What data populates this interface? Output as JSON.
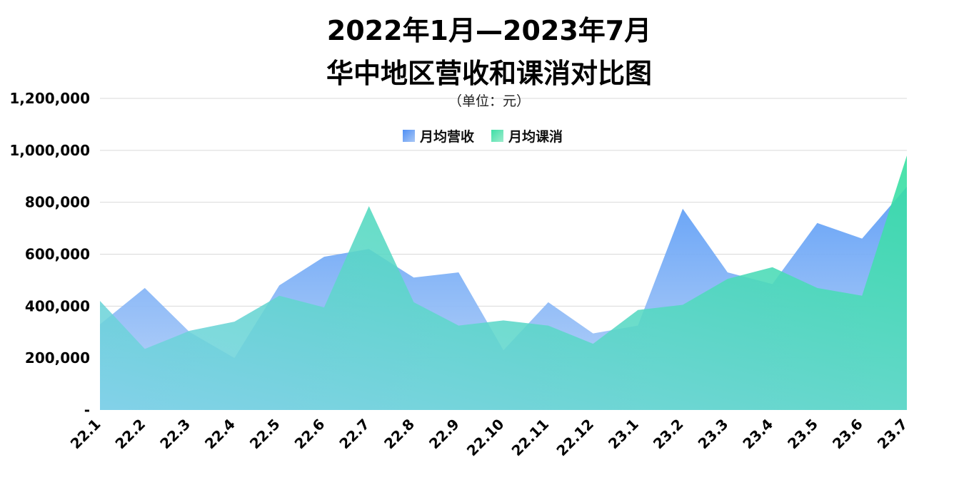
{
  "chart_data": {
    "type": "area",
    "title_line1": "2022年1月—2023年7月",
    "title_line2": "华中地区营收和课消对比图",
    "subtitle": "（单位：元）",
    "categories": [
      "22.1",
      "22.2",
      "22.3",
      "22.4",
      "22.5",
      "22.6",
      "22.7",
      "22.8",
      "22.9",
      "22.10",
      "22.11",
      "22.12",
      "23.1",
      "23.2",
      "23.3",
      "23.4",
      "23.5",
      "23.6",
      "23.7"
    ],
    "series": [
      {
        "name": "月均营收",
        "values": [
          330000,
          470000,
          300000,
          200000,
          480000,
          590000,
          620000,
          510000,
          530000,
          230000,
          415000,
          295000,
          325000,
          775000,
          530000,
          485000,
          720000,
          660000,
          860000
        ],
        "color_top": "#5b9cf6",
        "color_bottom": "#a9c8f5"
      },
      {
        "name": "月均课消",
        "values": [
          420000,
          235000,
          305000,
          340000,
          440000,
          395000,
          785000,
          415000,
          325000,
          345000,
          325000,
          255000,
          385000,
          405000,
          505000,
          550000,
          470000,
          440000,
          980000
        ]
      }
    ],
    "ylim": [
      0,
      1200000
    ],
    "yticks": [
      0,
      200000,
      400000,
      600000,
      800000,
      1000000,
      1200000
    ],
    "ytick_labels": [
      "-",
      "200,000",
      "400,000",
      "600,000",
      "800,000",
      "1,000,000",
      "1,200,000"
    ],
    "grid": true,
    "legend_position": "top-center",
    "colors": {
      "revenue_top": "#5b9cf6",
      "revenue_bottom": "#a9c8f5",
      "consume_top": "#3ddfa6",
      "consume_left_bottom": "#7fd3e0",
      "consume_right": "#40dfa8"
    }
  }
}
